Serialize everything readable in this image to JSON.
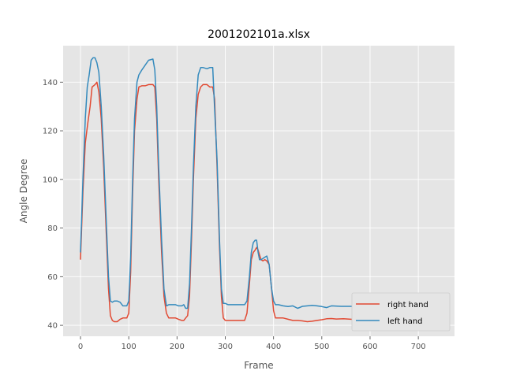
{
  "chart_data": {
    "type": "line",
    "title": "2001202101a.xlsx",
    "xlabel": "Frame",
    "ylabel": "Angle Degree",
    "xlim": [
      -36,
      775
    ],
    "ylim": [
      35.5,
      155
    ],
    "xticks": [
      0,
      100,
      200,
      300,
      400,
      500,
      600,
      700
    ],
    "yticks": [
      40,
      60,
      80,
      100,
      120,
      140
    ],
    "grid": true,
    "legend_position": "lower-right",
    "colors": {
      "background": "#e5e5e5",
      "grid": "#ffffff",
      "axis_text": "#555555"
    },
    "series": [
      {
        "name": "right hand",
        "color": "#e24a33",
        "points": [
          [
            0,
            67
          ],
          [
            5,
            95
          ],
          [
            10,
            115
          ],
          [
            15,
            123
          ],
          [
            20,
            130
          ],
          [
            24,
            138
          ],
          [
            30,
            139
          ],
          [
            34,
            140
          ],
          [
            38,
            136
          ],
          [
            43,
            125
          ],
          [
            48,
            105
          ],
          [
            53,
            80
          ],
          [
            58,
            55
          ],
          [
            62,
            44
          ],
          [
            66,
            42
          ],
          [
            70,
            41.5
          ],
          [
            76,
            41.5
          ],
          [
            82,
            42.5
          ],
          [
            88,
            43
          ],
          [
            96,
            43
          ],
          [
            100,
            45
          ],
          [
            104,
            62
          ],
          [
            108,
            95
          ],
          [
            112,
            120
          ],
          [
            117,
            133
          ],
          [
            121,
            138
          ],
          [
            127,
            138.5
          ],
          [
            134,
            138.5
          ],
          [
            141,
            139
          ],
          [
            150,
            139
          ],
          [
            154,
            138
          ],
          [
            158,
            125
          ],
          [
            162,
            100
          ],
          [
            168,
            70
          ],
          [
            173,
            52
          ],
          [
            178,
            45
          ],
          [
            183,
            43
          ],
          [
            190,
            43
          ],
          [
            197,
            43
          ],
          [
            203,
            42.5
          ],
          [
            210,
            42
          ],
          [
            214,
            42
          ],
          [
            218,
            43
          ],
          [
            222,
            44
          ],
          [
            226,
            52
          ],
          [
            230,
            75
          ],
          [
            234,
            100
          ],
          [
            239,
            125
          ],
          [
            244,
            135
          ],
          [
            249,
            138
          ],
          [
            254,
            139
          ],
          [
            262,
            139
          ],
          [
            268,
            138
          ],
          [
            274,
            138
          ],
          [
            278,
            133
          ],
          [
            283,
            105
          ],
          [
            288,
            72
          ],
          [
            292,
            52
          ],
          [
            296,
            43
          ],
          [
            300,
            42
          ],
          [
            306,
            42
          ],
          [
            312,
            42
          ],
          [
            320,
            42
          ],
          [
            330,
            42
          ],
          [
            340,
            42
          ],
          [
            345,
            45
          ],
          [
            350,
            57
          ],
          [
            354,
            67
          ],
          [
            358,
            70
          ],
          [
            362,
            71
          ],
          [
            365,
            72
          ],
          [
            368,
            71
          ],
          [
            371,
            69
          ],
          [
            374,
            67
          ],
          [
            378,
            66.5
          ],
          [
            382,
            67
          ],
          [
            386,
            66.5
          ],
          [
            391,
            65
          ],
          [
            396,
            55
          ],
          [
            400,
            46
          ],
          [
            404,
            43
          ],
          [
            410,
            43
          ],
          [
            420,
            43
          ],
          [
            430,
            42.5
          ],
          [
            440,
            42
          ],
          [
            450,
            42
          ],
          [
            460,
            41.8
          ],
          [
            470,
            41.5
          ],
          [
            480,
            41.7
          ],
          [
            490,
            42
          ],
          [
            500,
            42.3
          ],
          [
            510,
            42.7
          ],
          [
            520,
            42.8
          ],
          [
            530,
            42.6
          ],
          [
            545,
            42.7
          ],
          [
            560,
            42.5
          ],
          [
            580,
            42.3
          ],
          [
            600,
            42.5
          ],
          [
            620,
            42.3
          ],
          [
            640,
            42.4
          ],
          [
            660,
            42.5
          ],
          [
            680,
            42.3
          ],
          [
            700,
            42.5
          ]
        ]
      },
      {
        "name": "left hand",
        "color": "#348abd",
        "points": [
          [
            0,
            70
          ],
          [
            5,
            100
          ],
          [
            10,
            125
          ],
          [
            14,
            138
          ],
          [
            18,
            143
          ],
          [
            22,
            149
          ],
          [
            26,
            150
          ],
          [
            30,
            150
          ],
          [
            34,
            148
          ],
          [
            38,
            144
          ],
          [
            43,
            130
          ],
          [
            48,
            110
          ],
          [
            53,
            85
          ],
          [
            58,
            60
          ],
          [
            62,
            50
          ],
          [
            66,
            49.5
          ],
          [
            70,
            50
          ],
          [
            76,
            50
          ],
          [
            82,
            49.5
          ],
          [
            88,
            48
          ],
          [
            96,
            48
          ],
          [
            100,
            50
          ],
          [
            104,
            68
          ],
          [
            108,
            100
          ],
          [
            112,
            125
          ],
          [
            117,
            140
          ],
          [
            121,
            143
          ],
          [
            127,
            145
          ],
          [
            134,
            147
          ],
          [
            141,
            149
          ],
          [
            150,
            149.5
          ],
          [
            154,
            145
          ],
          [
            158,
            130
          ],
          [
            162,
            105
          ],
          [
            168,
            75
          ],
          [
            173,
            55
          ],
          [
            178,
            48
          ],
          [
            183,
            48.5
          ],
          [
            190,
            48.5
          ],
          [
            197,
            48.5
          ],
          [
            203,
            48
          ],
          [
            210,
            48
          ],
          [
            214,
            48.5
          ],
          [
            218,
            47
          ],
          [
            222,
            47
          ],
          [
            226,
            57
          ],
          [
            230,
            80
          ],
          [
            234,
            105
          ],
          [
            239,
            130
          ],
          [
            244,
            143
          ],
          [
            249,
            146
          ],
          [
            254,
            146
          ],
          [
            262,
            145.5
          ],
          [
            268,
            146
          ],
          [
            274,
            146
          ],
          [
            278,
            129
          ],
          [
            283,
            108
          ],
          [
            288,
            75
          ],
          [
            292,
            55
          ],
          [
            296,
            49
          ],
          [
            300,
            49
          ],
          [
            306,
            48.5
          ],
          [
            312,
            48.5
          ],
          [
            320,
            48.5
          ],
          [
            330,
            48.5
          ],
          [
            340,
            48.5
          ],
          [
            345,
            50
          ],
          [
            350,
            60
          ],
          [
            354,
            70
          ],
          [
            358,
            74
          ],
          [
            362,
            75
          ],
          [
            365,
            75
          ],
          [
            368,
            70
          ],
          [
            371,
            67
          ],
          [
            374,
            67
          ],
          [
            378,
            67.5
          ],
          [
            382,
            68
          ],
          [
            386,
            68.5
          ],
          [
            391,
            65
          ],
          [
            396,
            55
          ],
          [
            400,
            50
          ],
          [
            404,
            48.5
          ],
          [
            410,
            48.5
          ],
          [
            420,
            48
          ],
          [
            430,
            47.7
          ],
          [
            440,
            48
          ],
          [
            450,
            47
          ],
          [
            460,
            47.8
          ],
          [
            470,
            48
          ],
          [
            480,
            48.2
          ],
          [
            490,
            48
          ],
          [
            500,
            47.7
          ],
          [
            510,
            47.3
          ],
          [
            520,
            48
          ],
          [
            540,
            47.8
          ],
          [
            560,
            47.8
          ],
          [
            580,
            47.9
          ],
          [
            600,
            47.7
          ],
          [
            620,
            47.8
          ],
          [
            640,
            47.8
          ],
          [
            660,
            47.8
          ],
          [
            680,
            47.9
          ],
          [
            700,
            47.8
          ]
        ]
      }
    ]
  }
}
